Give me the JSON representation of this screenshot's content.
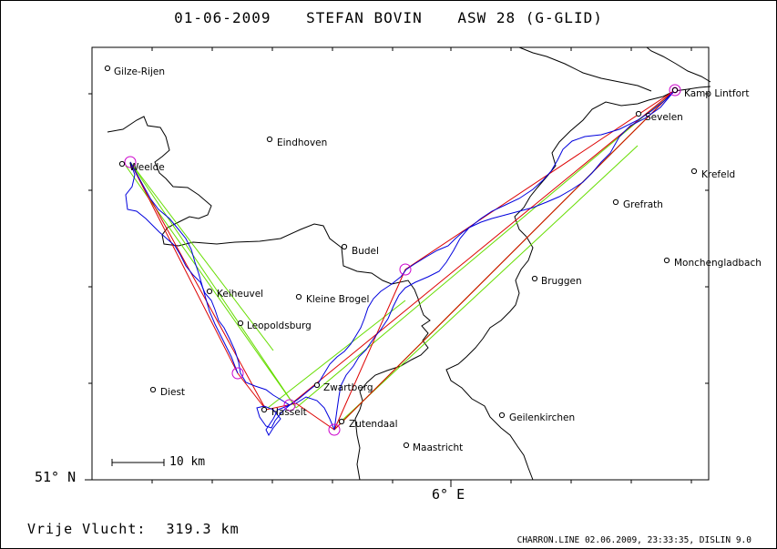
{
  "header": {
    "date": "01-06-2009",
    "pilot": "STEFAN BOVIN",
    "glider": "ASW 28 (G-GLID)"
  },
  "axes": {
    "latitude_label": "51° N",
    "longitude_label": "6° E"
  },
  "scale_bar": {
    "label": "10 km"
  },
  "distance": {
    "label": "Vrije Vlucht:",
    "value": "319.3 km"
  },
  "footer": "CHARRON.LINE 02.06.2009, 23:33:35, DISLIN 9.0",
  "places": [
    {
      "name": "Gilze-Rijen"
    },
    {
      "name": "Eindhoven"
    },
    {
      "name": "Weelde"
    },
    {
      "name": "Budel"
    },
    {
      "name": "Keiheuvel"
    },
    {
      "name": "Kleine Brogel"
    },
    {
      "name": "Leopoldsburg"
    },
    {
      "name": "Diest"
    },
    {
      "name": "Zwartberg"
    },
    {
      "name": "Hasselt"
    },
    {
      "name": "Zutendaal"
    },
    {
      "name": "Maastricht"
    },
    {
      "name": "Geilenkirchen"
    },
    {
      "name": "Bruggen"
    },
    {
      "name": "Monchengladbach"
    },
    {
      "name": "Grefrath"
    },
    {
      "name": "Krefeld"
    },
    {
      "name": "Sevelen"
    },
    {
      "name": "Kamp Lintfort"
    }
  ],
  "colors": {
    "track": "#0000dd",
    "route": "#dd0000",
    "sector": "#66dd00",
    "turnpoint": "#cc00cc",
    "border": "#000000"
  }
}
